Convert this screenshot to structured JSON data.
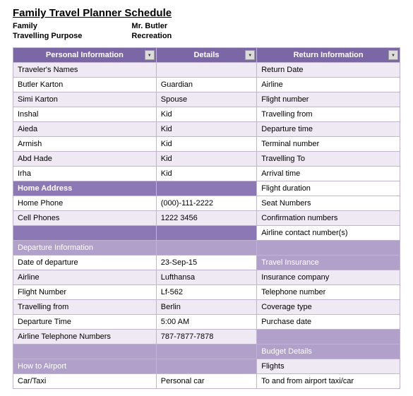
{
  "title": "Family Travel Planner Schedule",
  "header": {
    "labels": [
      "Family",
      "Travelling Purpose"
    ],
    "values": [
      "Mr. Butler",
      "Recreation"
    ]
  },
  "colors": {
    "hdr_main": "#7c67a6",
    "section_dark": "#8c78b4",
    "section_mid": "#b0a0ca",
    "row_light": "#efe9f4",
    "border": "#c0b4d0"
  },
  "columns": [
    "Personal Information",
    "Details",
    "Return Information"
  ],
  "rows": [
    {
      "a": "Traveler's Names",
      "b": "",
      "c": "Return Date",
      "bg": "light"
    },
    {
      "a": "Butler Karton",
      "b": "Guardian",
      "c": "Airline",
      "bg": "white"
    },
    {
      "a": "Simi Karton",
      "b": "Spouse",
      "c": "Flight number",
      "bg": "light"
    },
    {
      "a": "Inshal",
      "b": "Kid",
      "c": "Travelling from",
      "bg": "white"
    },
    {
      "a": "Aieda",
      "b": "Kid",
      "c": "Departure time",
      "bg": "light"
    },
    {
      "a": "Armish",
      "b": "Kid",
      "c": "Terminal number",
      "bg": "white"
    },
    {
      "a": "Abd Hade",
      "b": "Kid",
      "c": "Travelling To",
      "bg": "light"
    },
    {
      "a": "Irha",
      "b": "Kid",
      "c": "Arrival time",
      "bg": "white"
    },
    {
      "a": "Home Address",
      "b": "",
      "c": "Flight duration",
      "a_section": "dark",
      "b_section": "dark"
    },
    {
      "a": "Home Phone",
      "b": "(000)-111-2222",
      "c": "Seat Numbers",
      "bg": "white"
    },
    {
      "a": "Cell Phones",
      "b": "1222 3456",
      "c": "Confirmation numbers",
      "bg": "light"
    },
    {
      "a": "",
      "b": "",
      "c": "Airline contact number(s)",
      "a_section": "dark",
      "b_section": "dark"
    },
    {
      "a": "Departure Information",
      "b": "",
      "c": "",
      "a_section": "mid",
      "b_section": "mid",
      "c_section": "mid"
    },
    {
      "a": "Date of departure",
      "b": "23-Sep-15",
      "c": "Travel Insurance",
      "bg": "white",
      "c_section": "mid"
    },
    {
      "a": "Airline",
      "b": "Lufthansa",
      "c": "Insurance company",
      "bg": "light"
    },
    {
      "a": "Flight Number",
      "b": "Lf-562",
      "c": "Telephone number",
      "bg": "white"
    },
    {
      "a": "Travelling from",
      "b": "Berlin",
      "c": "Coverage type",
      "bg": "light"
    },
    {
      "a": "Departure Time",
      "b": "5:00 AM",
      "c": "Purchase date",
      "bg": "white"
    },
    {
      "a": "Airline Telephone Numbers",
      "b": "787-7877-7878",
      "c": "",
      "bg": "light",
      "c_section": "mid"
    },
    {
      "a": "",
      "b": "",
      "c": "Budget Details",
      "a_section": "mid",
      "b_section": "mid",
      "c_section": "mid"
    },
    {
      "a": "How to Airport",
      "b": "",
      "c": "Flights",
      "a_section": "mid",
      "b_section": "mid",
      "bg": "light"
    },
    {
      "a": "Car/Taxi",
      "b": "Personal car",
      "c": "To and from airport taxi/car",
      "bg": "white"
    }
  ]
}
